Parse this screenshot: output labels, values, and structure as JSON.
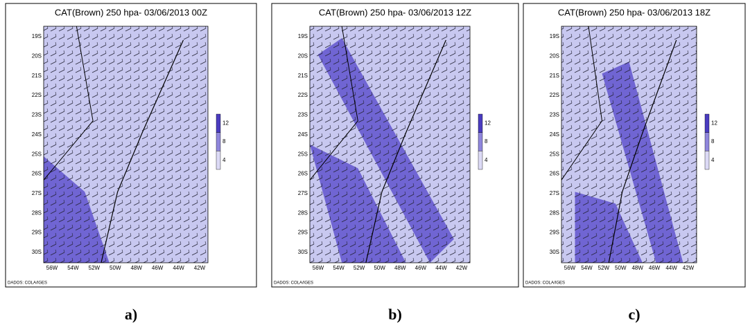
{
  "panels": [
    {
      "title": "CAT(Brown) 250 hpa- 03/06/2013 00Z",
      "lat_labels": [
        "19S",
        "20S",
        "21S",
        "22S",
        "23S",
        "24S",
        "25S",
        "26S",
        "27S",
        "28S",
        "29S",
        "30S"
      ],
      "lon_labels": [
        "56W",
        "54W",
        "52W",
        "50W",
        "48W",
        "46W",
        "44W",
        "42W"
      ],
      "colorbar_labels": [
        12,
        8,
        4
      ],
      "credit": "DADOS: COLA/IGES",
      "caption": "a)"
    },
    {
      "title": "CAT(Brown) 250 hpa- 03/06/2013 12Z",
      "lat_labels": [
        "19S",
        "20S",
        "21S",
        "22S",
        "23S",
        "24S",
        "25S",
        "26S",
        "27S",
        "28S",
        "29S",
        "30S"
      ],
      "lon_labels": [
        "56W",
        "54W",
        "52W",
        "50W",
        "48W",
        "46W",
        "44W",
        "42W"
      ],
      "colorbar_labels": [
        12,
        8,
        4
      ],
      "credit": "DADOS: COLA/IGES",
      "caption": "b)"
    },
    {
      "title": "CAT(Brown) 250 hpa- 03/06/2013 18Z",
      "lat_labels": [
        "19S",
        "20S",
        "21S",
        "22S",
        "23S",
        "24S",
        "25S",
        "26S",
        "27S",
        "28S",
        "29S",
        "30S"
      ],
      "lon_labels": [
        "56W",
        "54W",
        "52W",
        "50W",
        "48W",
        "46W",
        "44W",
        "42W"
      ],
      "colorbar_labels": [
        12,
        8,
        4
      ],
      "credit": "DADOS: COLA/IGES",
      "caption": "c)"
    }
  ]
}
